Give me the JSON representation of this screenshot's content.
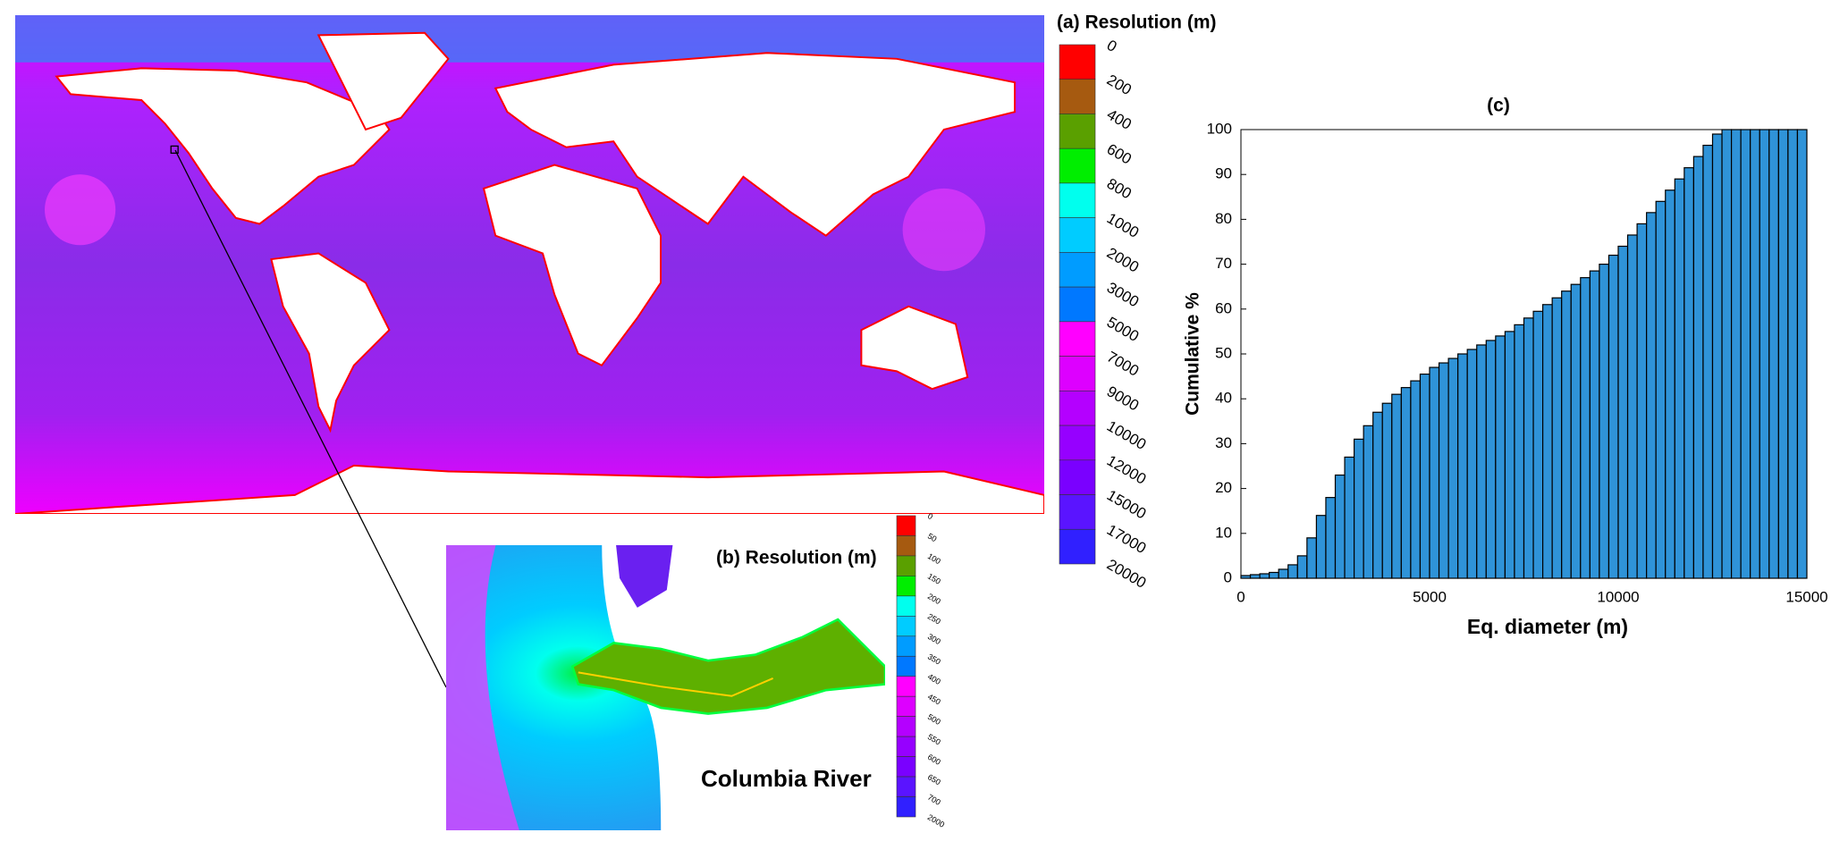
{
  "panel_a": {
    "title": "(a) Resolution (m)",
    "colorbar": {
      "colors": [
        "#ff0000",
        "#a65a10",
        "#5aa000",
        "#00ee00",
        "#00ffee",
        "#00ccff",
        "#009cff",
        "#0078ff",
        "#ff00ff",
        "#dd00ff",
        "#b400ff",
        "#9600ff",
        "#7a00ff",
        "#5a14ff",
        "#3020ff"
      ],
      "labels": [
        "0",
        "200",
        "400",
        "600",
        "800",
        "1000",
        "2000",
        "3000",
        "5000",
        "7000",
        "9000",
        "10000",
        "12000",
        "15000",
        "17000",
        "20000"
      ]
    }
  },
  "panel_b": {
    "title": "(b) Resolution (m)",
    "annotation": "Columbia River",
    "colorbar": {
      "colors": [
        "#ff0000",
        "#a65a10",
        "#5aa000",
        "#00ee00",
        "#00ffee",
        "#00ccff",
        "#009cff",
        "#0078ff",
        "#ff00ff",
        "#dd00ff",
        "#b400ff",
        "#9600ff",
        "#7a00ff",
        "#5a14ff",
        "#3020ff"
      ],
      "labels": [
        "0",
        "50",
        "100",
        "150",
        "200",
        "250",
        "300",
        "350",
        "400",
        "450",
        "500",
        "550",
        "600",
        "650",
        "700",
        "2000"
      ]
    }
  },
  "chart_data": {
    "type": "histogram",
    "title": "(c)",
    "xlabel": "Eq. diameter (m)",
    "ylabel": "Cumulative %",
    "bins": [
      0,
      250,
      500,
      750,
      1000,
      1250,
      1500,
      1750,
      2000,
      2250,
      2500,
      2750,
      3000,
      3250,
      3500,
      3750,
      4000,
      4250,
      4500,
      4750,
      5000,
      5250,
      5500,
      5750,
      6000,
      6250,
      6500,
      6750,
      7000,
      7250,
      7500,
      7750,
      8000,
      8250,
      8500,
      8750,
      9000,
      9250,
      9500,
      9750,
      10000,
      10250,
      10500,
      10750,
      11000,
      11250,
      11500,
      11750,
      12000,
      12250,
      12500,
      12750,
      13000,
      13250,
      13500,
      13750,
      14000,
      14250,
      14500,
      14750,
      15000
    ],
    "values": [
      0.6,
      0.8,
      1,
      1.3,
      2,
      3,
      5,
      9,
      14,
      18,
      23,
      27,
      31,
      34,
      37,
      39,
      41,
      42.5,
      44,
      45.5,
      47,
      48,
      49,
      50,
      51,
      52,
      53,
      54,
      55,
      56.5,
      58,
      59.5,
      61,
      62.5,
      64,
      65.5,
      67,
      68.5,
      70,
      72,
      74,
      76.5,
      79,
      81.5,
      84,
      86.5,
      89,
      91.5,
      94,
      96.5,
      99,
      100,
      100,
      100,
      100,
      100,
      100,
      100,
      100,
      100
    ],
    "color": "#2f93d8",
    "edgecolor": "#000000",
    "xlim": [
      0,
      15000
    ],
    "xticks": [
      0,
      5000,
      10000,
      15000
    ],
    "ylim": [
      0,
      100
    ],
    "yticks": [
      0,
      10,
      20,
      30,
      40,
      50,
      60,
      70,
      80,
      90,
      100
    ]
  }
}
